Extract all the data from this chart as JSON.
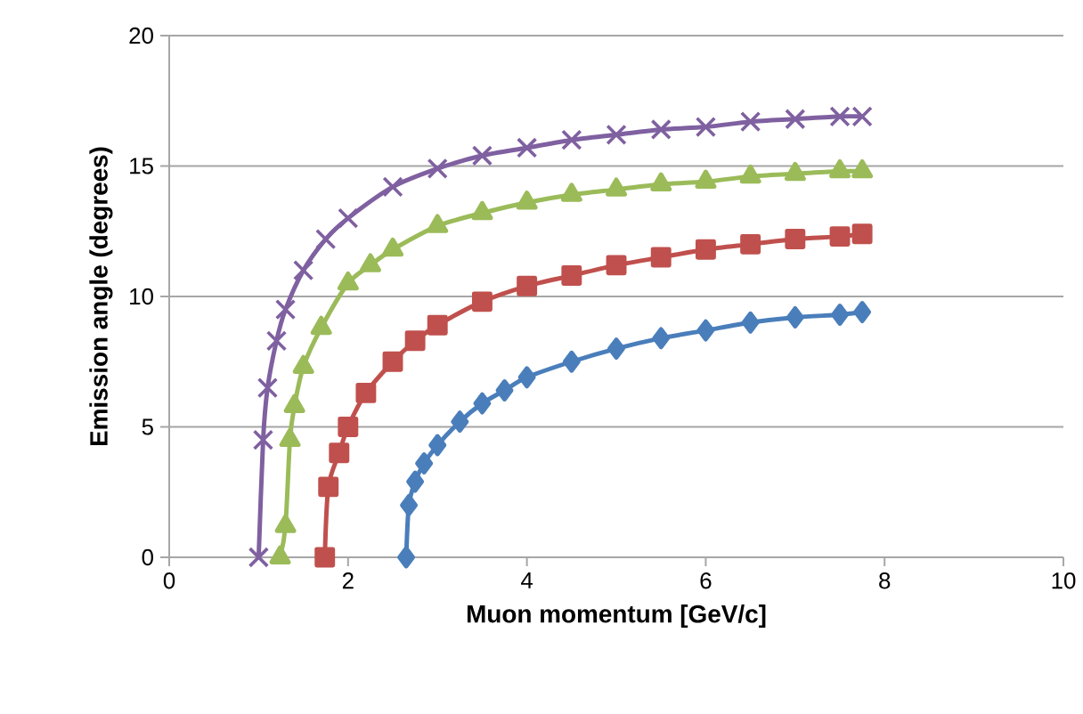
{
  "chart_data": {
    "type": "line",
    "xlabel": "Muon momentum [GeV/c]",
    "ylabel": "Emission angle (degrees)",
    "xlim": [
      0,
      10
    ],
    "xticks": [
      0,
      2,
      4,
      6,
      8,
      10
    ],
    "ylim": [
      0,
      20
    ],
    "yticks": [
      0,
      5,
      10,
      15,
      20
    ],
    "grid": "y",
    "line_style": "solid",
    "series": [
      {
        "color": "#4a7ebb",
        "marker": "diamond",
        "x": [
          2.65,
          2.68,
          2.75,
          2.85,
          3,
          3.25,
          3.5,
          3.75,
          4,
          4.5,
          5,
          5.5,
          6,
          6.5,
          7,
          7.5,
          7.75
        ],
        "values": [
          0,
          2,
          2.9,
          3.6,
          4.3,
          5.2,
          5.9,
          6.4,
          6.9,
          7.5,
          8,
          8.4,
          8.7,
          9,
          9.2,
          9.3,
          9.4
        ]
      },
      {
        "color": "#c0504d",
        "marker": "square",
        "x": [
          1.74,
          1.78,
          1.9,
          2,
          2.2,
          2.5,
          2.75,
          3,
          3.5,
          4,
          4.5,
          5,
          5.5,
          6,
          6.5,
          7,
          7.5,
          7.75
        ],
        "values": [
          0,
          2.7,
          4,
          5,
          6.3,
          7.5,
          8.3,
          8.9,
          9.8,
          10.4,
          10.8,
          11.2,
          11.5,
          11.8,
          12,
          12.2,
          12.3,
          12.4
        ]
      },
      {
        "color": "#9bbb59",
        "marker": "triangle",
        "x": [
          1.24,
          1.3,
          1.35,
          1.4,
          1.5,
          1.7,
          2,
          2.25,
          2.5,
          3,
          3.5,
          4,
          4.5,
          5,
          5.5,
          6,
          6.5,
          7,
          7.5,
          7.75
        ],
        "values": [
          0,
          1.2,
          4.5,
          5.8,
          7.3,
          8.8,
          10.5,
          11.2,
          11.8,
          12.7,
          13.2,
          13.6,
          13.9,
          14.1,
          14.3,
          14.4,
          14.6,
          14.7,
          14.8,
          14.8
        ]
      },
      {
        "color": "#7f60a0",
        "marker": "cross",
        "x": [
          1,
          1.05,
          1.1,
          1.2,
          1.3,
          1.5,
          1.75,
          2,
          2.5,
          3,
          3.5,
          4,
          4.5,
          5,
          5.5,
          6,
          6.5,
          7,
          7.5,
          7.75
        ],
        "values": [
          0,
          4.5,
          6.5,
          8.3,
          9.5,
          11,
          12.2,
          13,
          14.2,
          14.9,
          15.4,
          15.7,
          16,
          16.2,
          16.4,
          16.5,
          16.7,
          16.8,
          16.9,
          16.9
        ]
      }
    ]
  }
}
